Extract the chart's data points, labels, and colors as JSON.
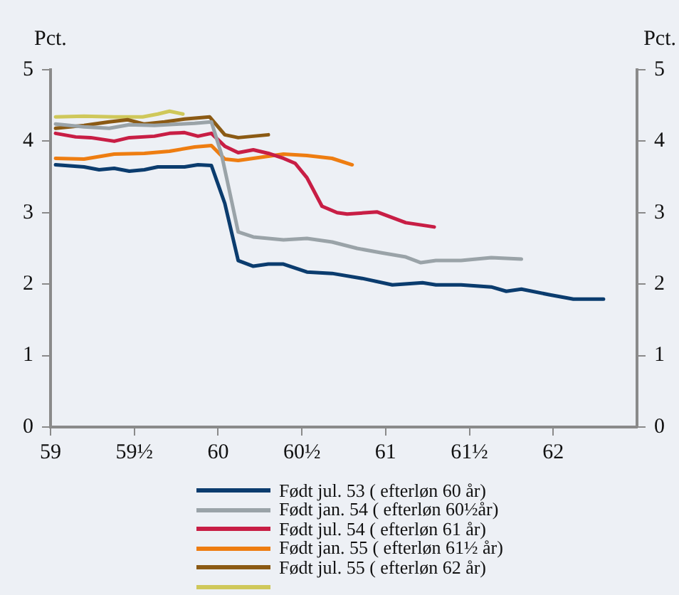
{
  "chart_data": {
    "type": "line",
    "ylabel": "Pct.",
    "y2label": "Pct.",
    "xlim": [
      59,
      62.5
    ],
    "xticks": [
      59,
      {
        "value": 59.5,
        "label": "59½"
      },
      60,
      {
        "value": 60.5,
        "label": "60½"
      },
      61,
      {
        "value": 61.5,
        "label": "61½"
      },
      62
    ],
    "ylim": [
      0,
      5
    ],
    "yticks": [
      0,
      1,
      2,
      3,
      4,
      5
    ],
    "y2lim": [
      0,
      5
    ],
    "y2ticks": [
      0,
      1,
      2,
      3,
      4,
      5
    ],
    "grid": false,
    "legend": "bottom",
    "marker": "none",
    "line_style": "solid",
    "series": [
      {
        "name": "Født jul. 53 ( efterløn 60 år)",
        "color": "#0b3c6e",
        "x": [
          59.03,
          59.2,
          59.29,
          59.38,
          59.47,
          59.56,
          59.64,
          59.8,
          59.88,
          59.96,
          60.04,
          60.12,
          60.21,
          60.3,
          60.39,
          60.53,
          60.68,
          60.86,
          61.04,
          61.22,
          61.3,
          61.45,
          61.63,
          61.72,
          61.81,
          61.98,
          62.12,
          62.3
        ],
        "values": [
          3.67,
          3.64,
          3.6,
          3.62,
          3.58,
          3.6,
          3.64,
          3.64,
          3.67,
          3.66,
          3.13,
          2.33,
          2.25,
          2.28,
          2.28,
          2.17,
          2.15,
          2.08,
          1.99,
          2.02,
          1.99,
          1.99,
          1.96,
          1.9,
          1.93,
          1.85,
          1.79,
          1.79
        ]
      },
      {
        "name": "Født jan. 54 ( efterløn 60½år)",
        "color": "#9aa3a8",
        "x": [
          59.03,
          59.2,
          59.35,
          59.47,
          59.62,
          59.77,
          59.86,
          59.96,
          60.02,
          60.08,
          60.12,
          60.21,
          60.39,
          60.53,
          60.68,
          60.83,
          60.97,
          61.12,
          61.21,
          61.3,
          61.45,
          61.63,
          61.81
        ],
        "values": [
          4.24,
          4.2,
          4.18,
          4.23,
          4.22,
          4.24,
          4.25,
          4.27,
          3.82,
          3.17,
          2.73,
          2.66,
          2.62,
          2.64,
          2.59,
          2.5,
          2.44,
          2.38,
          2.3,
          2.33,
          2.33,
          2.37,
          2.35
        ]
      },
      {
        "name": "Født jul. 54 ( efterløn 61 år)",
        "color": "#c81e45",
        "x": [
          59.03,
          59.15,
          59.24,
          59.38,
          59.47,
          59.62,
          59.71,
          59.8,
          59.88,
          59.96,
          60.04,
          60.12,
          60.21,
          60.3,
          60.39,
          60.46,
          60.53,
          60.62,
          60.71,
          60.77,
          60.95,
          61.12,
          61.29
        ],
        "values": [
          4.11,
          4.06,
          4.05,
          4.0,
          4.05,
          4.07,
          4.11,
          4.12,
          4.07,
          4.11,
          3.93,
          3.84,
          3.88,
          3.83,
          3.76,
          3.69,
          3.49,
          3.09,
          3.0,
          2.98,
          3.01,
          2.86,
          2.8
        ]
      },
      {
        "name": "Født jan. 55 ( efterløn 61½ år)",
        "color": "#ee7d11",
        "x": [
          59.03,
          59.2,
          59.38,
          59.56,
          59.71,
          59.86,
          59.96,
          60.04,
          60.12,
          60.21,
          60.39,
          60.53,
          60.68,
          60.8
        ],
        "values": [
          3.76,
          3.75,
          3.82,
          3.83,
          3.86,
          3.92,
          3.94,
          3.75,
          3.73,
          3.76,
          3.82,
          3.8,
          3.76,
          3.67
        ]
      },
      {
        "name": "Født jul. 55 ( efterløn 62 år)",
        "color": "#8b5a14",
        "x": [
          59.03,
          59.2,
          59.35,
          59.46,
          59.56,
          59.68,
          59.8,
          59.95,
          60.04,
          60.12,
          60.21,
          60.3
        ],
        "values": [
          4.18,
          4.22,
          4.27,
          4.3,
          4.24,
          4.27,
          4.31,
          4.34,
          4.09,
          4.05,
          4.07,
          4.09
        ]
      },
      {
        "color": "#cfc85a",
        "x": [
          59.03,
          59.2,
          59.38,
          59.55,
          59.64,
          59.71,
          59.79
        ],
        "values": [
          4.34,
          4.35,
          4.34,
          4.34,
          4.38,
          4.42,
          4.38
        ]
      }
    ]
  }
}
